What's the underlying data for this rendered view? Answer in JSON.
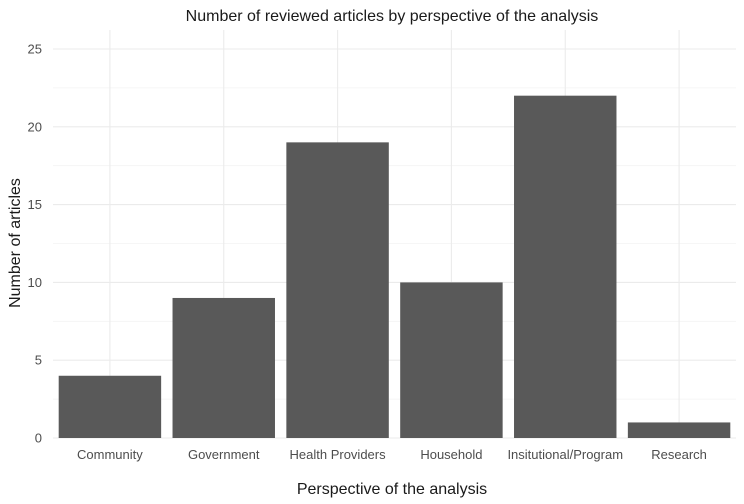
{
  "chart_data": {
    "type": "bar",
    "title": "Number of reviewed articles by perspective of the analysis",
    "xlabel": "Perspective of the analysis",
    "ylabel": "Number of articles",
    "categories": [
      "Community",
      "Government",
      "Health Providers",
      "Household",
      "Insitutional/Program",
      "Research"
    ],
    "values": [
      4,
      9,
      19,
      10,
      22,
      1
    ],
    "ylim": [
      0,
      25
    ],
    "yticks": [
      "0",
      "5",
      "10",
      "15",
      "20",
      "25"
    ],
    "grid": true,
    "bar_color": "#595959"
  }
}
